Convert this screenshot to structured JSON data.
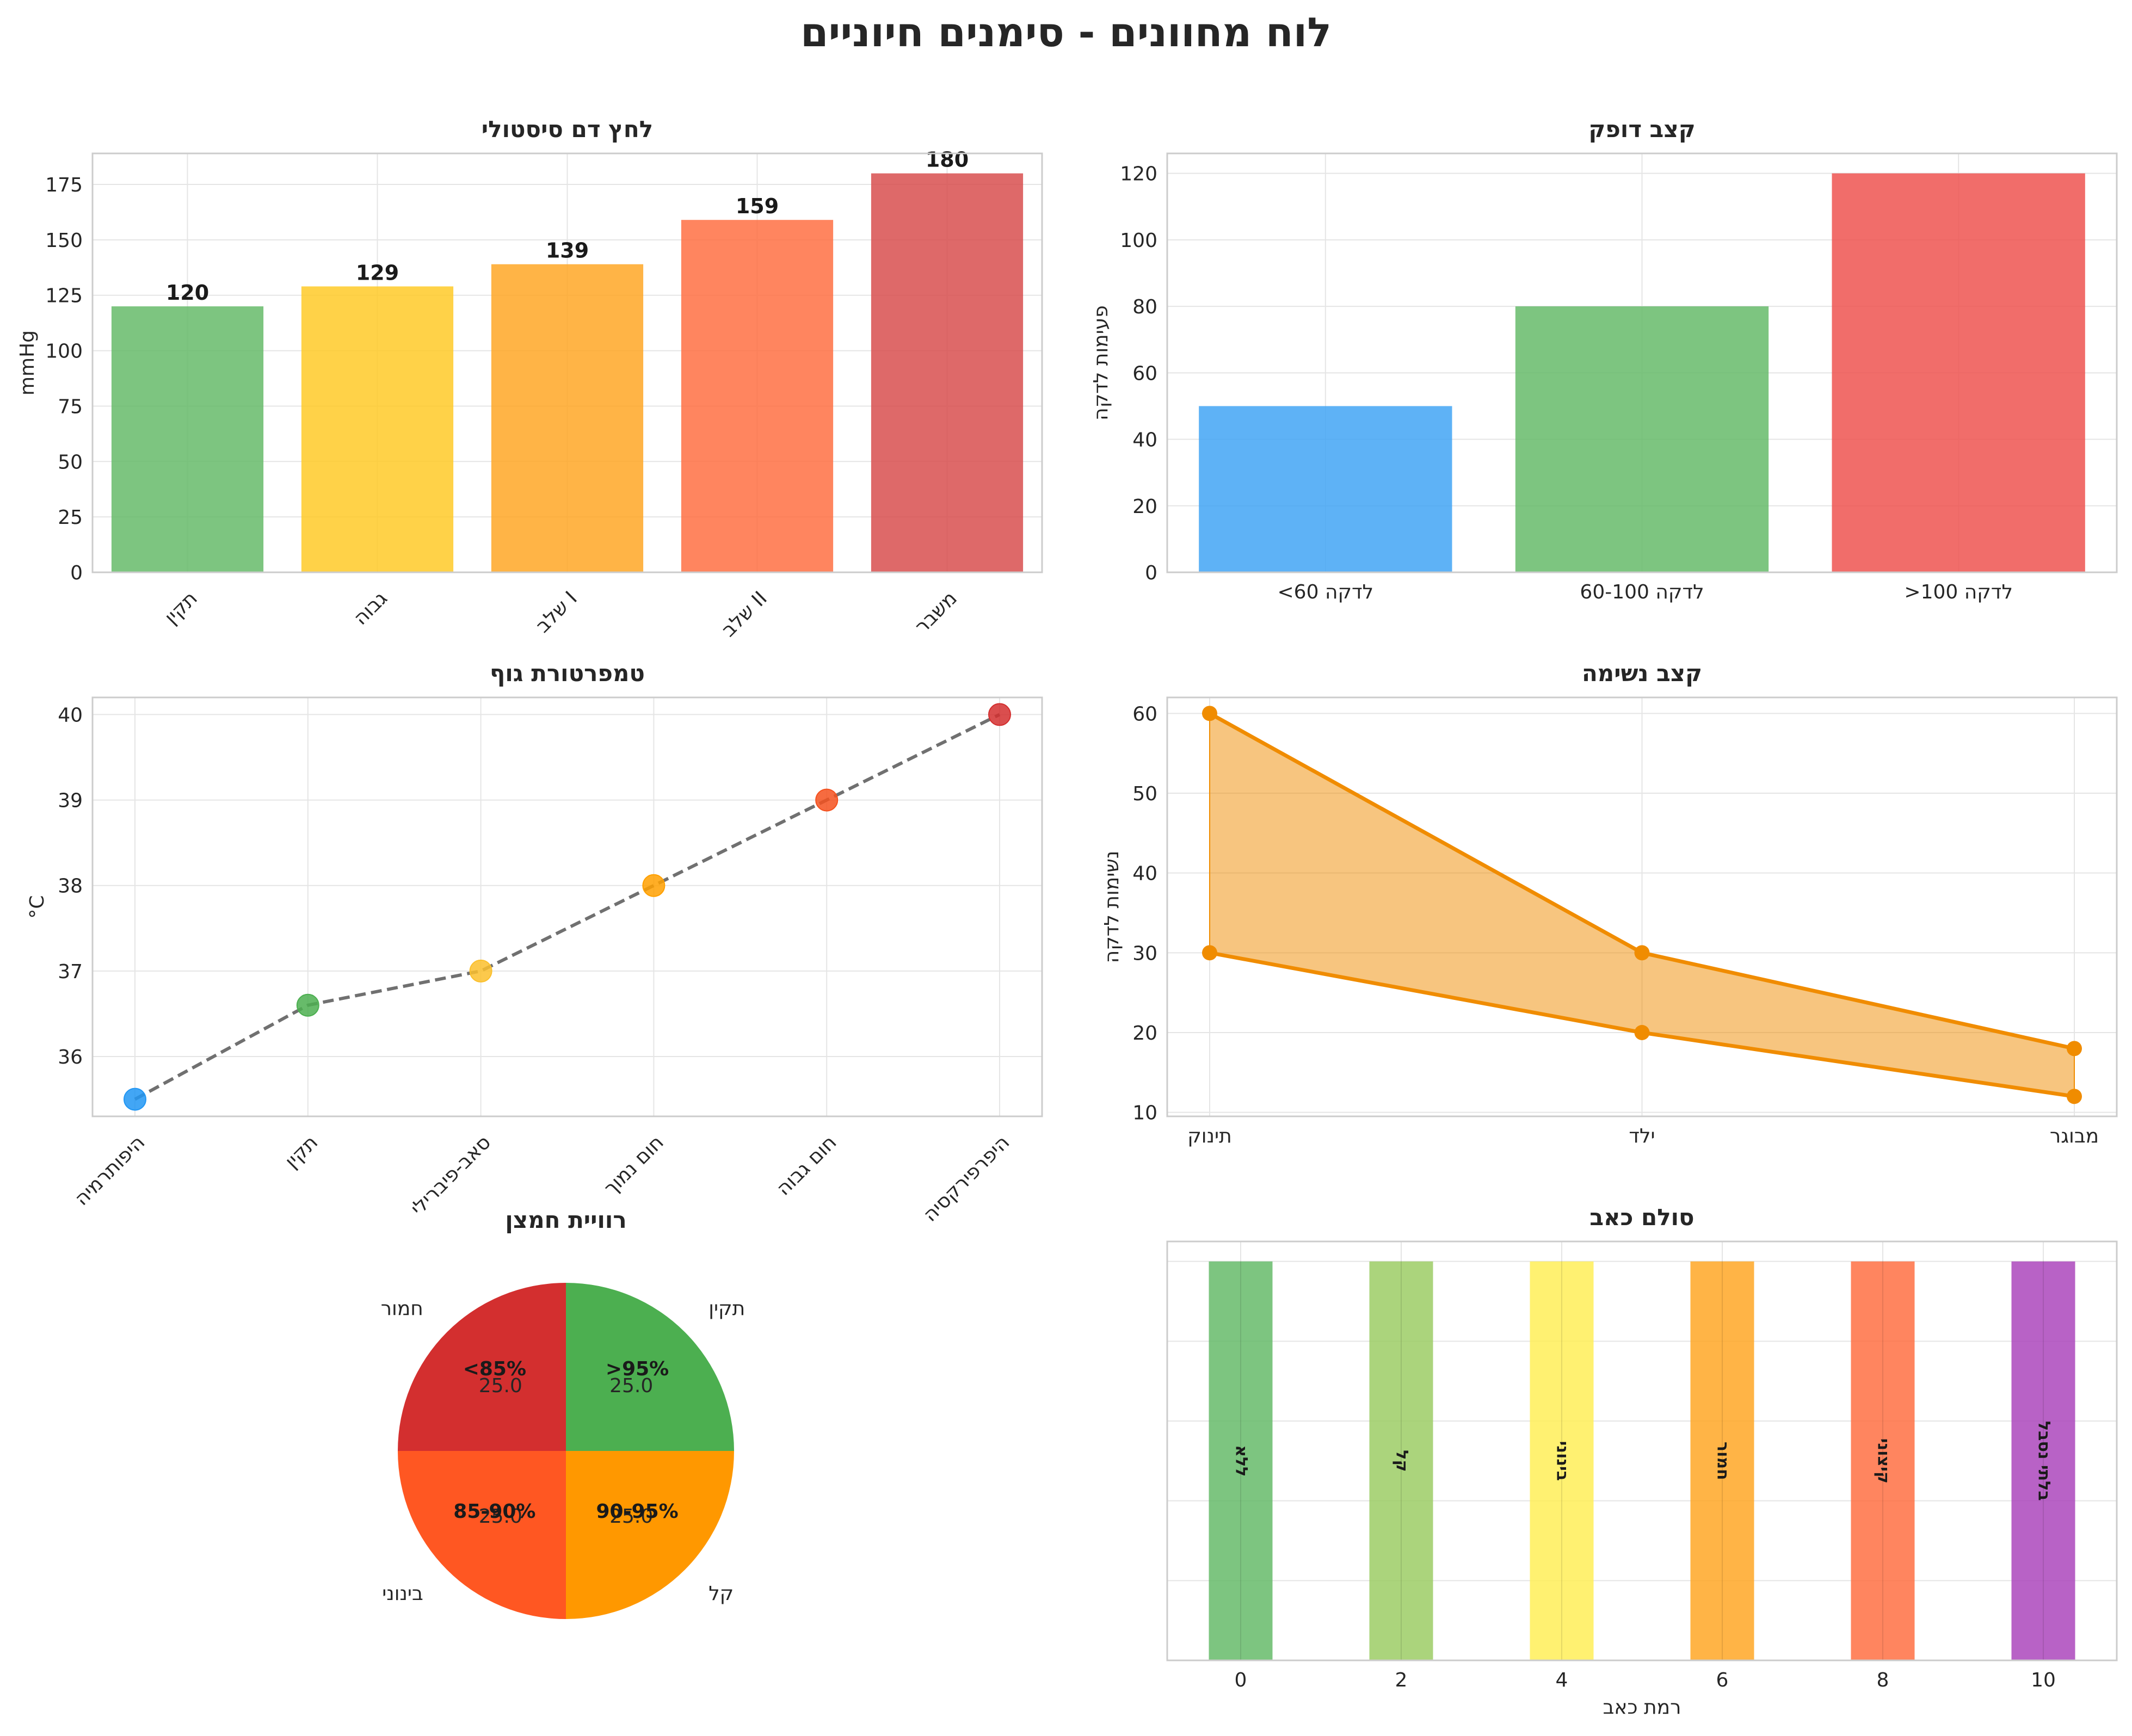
{
  "title": "לוח מחוונים - סימנים חיוניים",
  "chart_data": [
    {
      "id": "bp",
      "type": "bar",
      "title": "לחץ דם סיסטולי",
      "ylabel": "mmHg",
      "categories": [
        "תקין",
        "גבוה",
        "שלב I",
        "שלב II",
        "משבר"
      ],
      "values": [
        120,
        129,
        139,
        159,
        180
      ],
      "data_labels": [
        "120",
        "129",
        "139",
        "159",
        "180"
      ],
      "colors": [
        "#66bb6a",
        "#ffca28",
        "#ffa726",
        "#ff7043",
        "#d84f4f"
      ],
      "ylim": [
        0,
        189
      ],
      "yticks": [
        "0",
        "25",
        "50",
        "75",
        "100",
        "125",
        "150",
        "175"
      ],
      "grid": true
    },
    {
      "id": "hr",
      "type": "bar",
      "title": "קצב דופק",
      "ylabel": "פעימות לדקה",
      "categories": [
        "<60 לדקה",
        "60-100 לדקה",
        ">100 לדקה"
      ],
      "values": [
        50,
        80,
        120
      ],
      "colors": [
        "#42a5f5",
        "#66bb6a",
        "#ef5350"
      ],
      "ylim": [
        0,
        126
      ],
      "yticks": [
        "0",
        "20",
        "40",
        "60",
        "80",
        "100",
        "120"
      ],
      "grid": true
    },
    {
      "id": "temp",
      "type": "line",
      "title": "טמפרטורת גוף",
      "ylabel": "°C",
      "categories": [
        "היפותרמיה",
        "תקין",
        "סאב-פיברילי",
        "חום נמוך",
        "חום גבוה",
        "היפרפירקסיה"
      ],
      "values": [
        35.5,
        36.6,
        37.0,
        38.0,
        39.0,
        40.0
      ],
      "colors": [
        "#2196f3",
        "#4caf50",
        "#fbc02d",
        "#ffa000",
        "#f4511e",
        "#d32f2f"
      ],
      "ylim": [
        35.3,
        40.2
      ],
      "yticks": [
        "36",
        "37",
        "38",
        "39",
        "40"
      ],
      "grid": true
    },
    {
      "id": "rr",
      "type": "area",
      "title": "קצב נשימה",
      "ylabel": "נשימות לדקה",
      "categories": [
        "תינוק",
        "ילד",
        "מבוגר"
      ],
      "series": [
        {
          "values": [
            30,
            20,
            12
          ]
        },
        {
          "values": [
            60,
            30,
            18
          ]
        }
      ],
      "color": "#f08c00",
      "ylim": [
        9.5,
        62
      ],
      "yticks": [
        "10",
        "20",
        "30",
        "40",
        "50",
        "60"
      ],
      "grid": true
    },
    {
      "id": "spo2",
      "type": "pie",
      "title": "רוויית חמצן",
      "categories": [
        "תקין",
        "קל",
        "בינוני",
        "חמור"
      ],
      "inner_labels": [
        ">95%",
        "90-95%",
        "85-90%",
        "<85%"
      ],
      "pct_labels": [
        "25.0",
        "25.0",
        "25.0",
        "25.0"
      ],
      "values": [
        25,
        25,
        25,
        25
      ],
      "colors": [
        "#4caf50",
        "#ff9800",
        "#ff5722",
        "#d32f2f"
      ]
    },
    {
      "id": "pain",
      "type": "bar",
      "title": "סולם כאב",
      "xlabel": "רמת כאב",
      "x": [
        "0",
        "2",
        "4",
        "6",
        "8",
        "10"
      ],
      "values": [
        1,
        1,
        1,
        1,
        1,
        1
      ],
      "bar_labels": [
        "ללא",
        "קל",
        "בינוני",
        "חמור",
        "קיצוני",
        "בלתי נסבל"
      ],
      "colors": [
        "#66bb6a",
        "#9ccc65",
        "#ffee58",
        "#ffa726",
        "#ff7043",
        "#ab47bc"
      ],
      "ylim": [
        0,
        1.05
      ],
      "grid": true
    }
  ]
}
